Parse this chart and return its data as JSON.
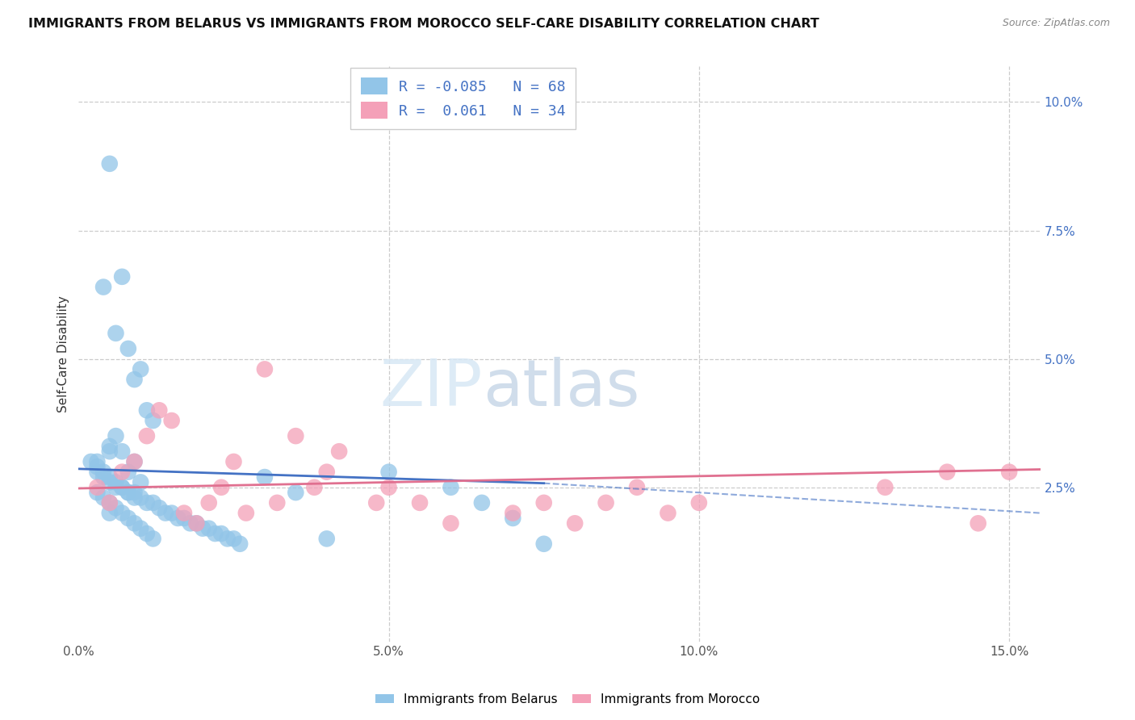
{
  "title": "IMMIGRANTS FROM BELARUS VS IMMIGRANTS FROM MOROCCO SELF-CARE DISABILITY CORRELATION CHART",
  "source": "Source: ZipAtlas.com",
  "ylabel": "Self-Care Disability",
  "xlim": [
    0.0,
    0.155
  ],
  "ylim": [
    -0.005,
    0.107
  ],
  "yticks_right": [
    0.025,
    0.05,
    0.075,
    0.1
  ],
  "yticklabels_right": [
    "2.5%",
    "5.0%",
    "7.5%",
    "10.0%"
  ],
  "xticks": [
    0.0,
    0.05,
    0.1,
    0.15
  ],
  "xticklabels": [
    "0.0%",
    "5.0%",
    "10.0%",
    "15.0%"
  ],
  "color_belarus": "#92C5E8",
  "color_morocco": "#F4A0B8",
  "color_trendline_belarus": "#4472C4",
  "color_trendline_morocco": "#E07090",
  "color_axis_text": "#4472C4",
  "color_tick_text": "#555555",
  "watermark_zip": "ZIP",
  "watermark_atlas": "atlas",
  "background_color": "#FFFFFF",
  "grid_color": "#CCCCCC",
  "belarus_x": [
    0.005,
    0.003,
    0.007,
    0.004,
    0.006,
    0.008,
    0.01,
    0.009,
    0.011,
    0.012,
    0.006,
    0.005,
    0.007,
    0.009,
    0.008,
    0.01,
    0.003,
    0.004,
    0.005,
    0.006,
    0.007,
    0.008,
    0.009,
    0.01,
    0.011,
    0.012,
    0.013,
    0.014,
    0.015,
    0.016,
    0.017,
    0.018,
    0.019,
    0.02,
    0.021,
    0.022,
    0.023,
    0.024,
    0.025,
    0.026,
    0.003,
    0.004,
    0.005,
    0.006,
    0.007,
    0.008,
    0.009,
    0.01,
    0.011,
    0.012,
    0.002,
    0.003,
    0.004,
    0.005,
    0.006,
    0.007,
    0.008,
    0.009,
    0.03,
    0.035,
    0.04,
    0.05,
    0.06,
    0.065,
    0.07,
    0.075,
    0.005,
    0.005
  ],
  "belarus_y": [
    0.088,
    0.03,
    0.066,
    0.064,
    0.055,
    0.052,
    0.048,
    0.046,
    0.04,
    0.038,
    0.035,
    0.033,
    0.032,
    0.03,
    0.028,
    0.026,
    0.028,
    0.027,
    0.026,
    0.025,
    0.025,
    0.024,
    0.024,
    0.023,
    0.022,
    0.022,
    0.021,
    0.02,
    0.02,
    0.019,
    0.019,
    0.018,
    0.018,
    0.017,
    0.017,
    0.016,
    0.016,
    0.015,
    0.015,
    0.014,
    0.024,
    0.023,
    0.022,
    0.021,
    0.02,
    0.019,
    0.018,
    0.017,
    0.016,
    0.015,
    0.03,
    0.029,
    0.028,
    0.027,
    0.026,
    0.025,
    0.024,
    0.023,
    0.027,
    0.024,
    0.015,
    0.028,
    0.025,
    0.022,
    0.019,
    0.014,
    0.032,
    0.02
  ],
  "morocco_x": [
    0.003,
    0.005,
    0.007,
    0.009,
    0.011,
    0.013,
    0.015,
    0.017,
    0.019,
    0.021,
    0.023,
    0.025,
    0.027,
    0.03,
    0.032,
    0.035,
    0.038,
    0.042,
    0.048,
    0.04,
    0.05,
    0.055,
    0.06,
    0.07,
    0.075,
    0.08,
    0.085,
    0.09,
    0.095,
    0.1,
    0.13,
    0.14,
    0.145,
    0.15
  ],
  "morocco_y": [
    0.025,
    0.022,
    0.028,
    0.03,
    0.035,
    0.04,
    0.038,
    0.02,
    0.018,
    0.022,
    0.025,
    0.03,
    0.02,
    0.048,
    0.022,
    0.035,
    0.025,
    0.032,
    0.022,
    0.028,
    0.025,
    0.022,
    0.018,
    0.02,
    0.022,
    0.018,
    0.022,
    0.025,
    0.02,
    0.022,
    0.025,
    0.028,
    0.018,
    0.028
  ],
  "trend_belarus_x0": 0.0,
  "trend_belarus_y0": 0.0286,
  "trend_belarus_x1": 0.075,
  "trend_belarus_y1": 0.0258,
  "trend_belarus_dash_x0": 0.075,
  "trend_belarus_dash_y0": 0.0258,
  "trend_belarus_dash_x1": 0.155,
  "trend_belarus_dash_y1": 0.02,
  "trend_morocco_x0": 0.0,
  "trend_morocco_y0": 0.0248,
  "trend_morocco_x1": 0.155,
  "trend_morocco_y1": 0.0285
}
